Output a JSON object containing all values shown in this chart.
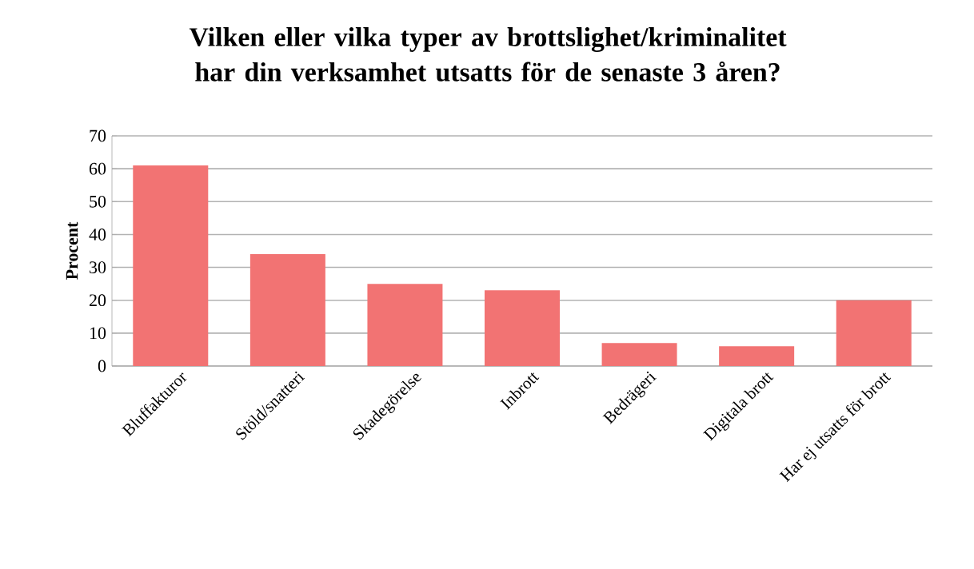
{
  "chart_data": {
    "type": "bar",
    "title": "Vilken eller vilka typer av brottslighet/kriminalitet har din verksamhet utsatts för de senaste 3 åren?",
    "ylabel": "Procent",
    "categories": [
      "Bluffakturor",
      "Stöld/snatteri",
      "Skadegörelse",
      "Inbrott",
      "Bedrägeri",
      "Digitala brott",
      "Har ej utsatts för brott"
    ],
    "values": [
      61,
      34,
      25,
      23,
      7,
      6,
      20
    ],
    "color": "#f27373",
    "ylim": [
      0,
      70
    ],
    "yticks": [
      0,
      10,
      20,
      30,
      40,
      50,
      60,
      70
    ],
    "grid": "y"
  }
}
